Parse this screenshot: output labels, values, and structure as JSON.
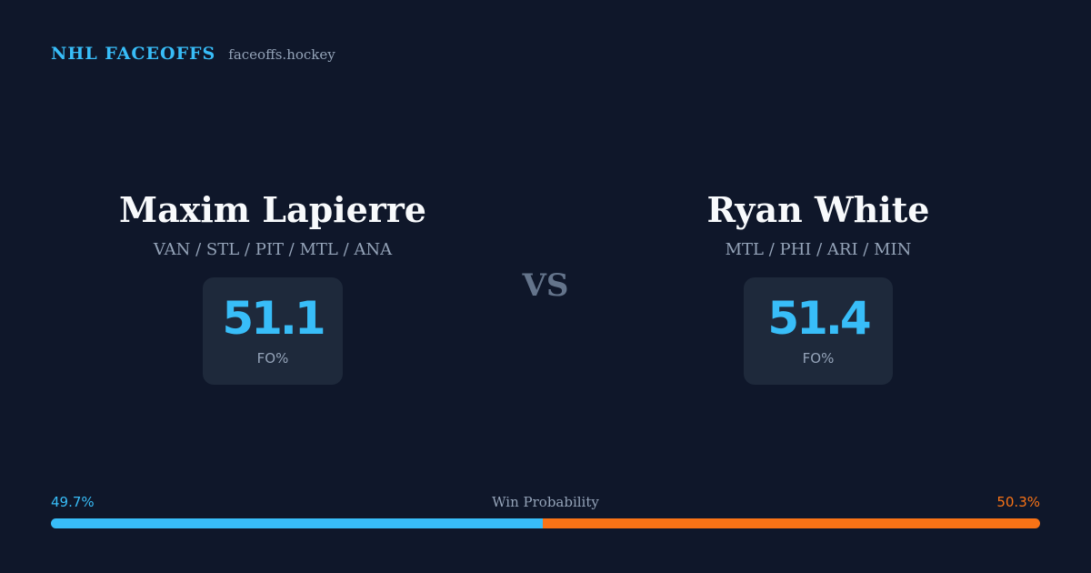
{
  "brand": {
    "title": "NHL FACEOFFS",
    "site": "faceoffs.hockey"
  },
  "player_left": {
    "name": "Maxim Lapierre",
    "teams": "VAN / STL / PIT / MTL / ANA",
    "fo_pct": "51.1",
    "stat_label": "FO%"
  },
  "player_right": {
    "name": "Ryan White",
    "teams": "MTL / PHI / ARI / MIN",
    "fo_pct": "51.4",
    "stat_label": "FO%"
  },
  "vs_label": "VS",
  "win_probability": {
    "title": "Win Probability",
    "left_label": "49.7%",
    "right_label": "50.3%",
    "left_value": 49.7,
    "right_value": 50.3
  },
  "colors": {
    "background": "#0f172a",
    "accent_left": "#38bdf8",
    "accent_right": "#f97316",
    "card": "#1e293b",
    "muted": "#94a3b8"
  }
}
